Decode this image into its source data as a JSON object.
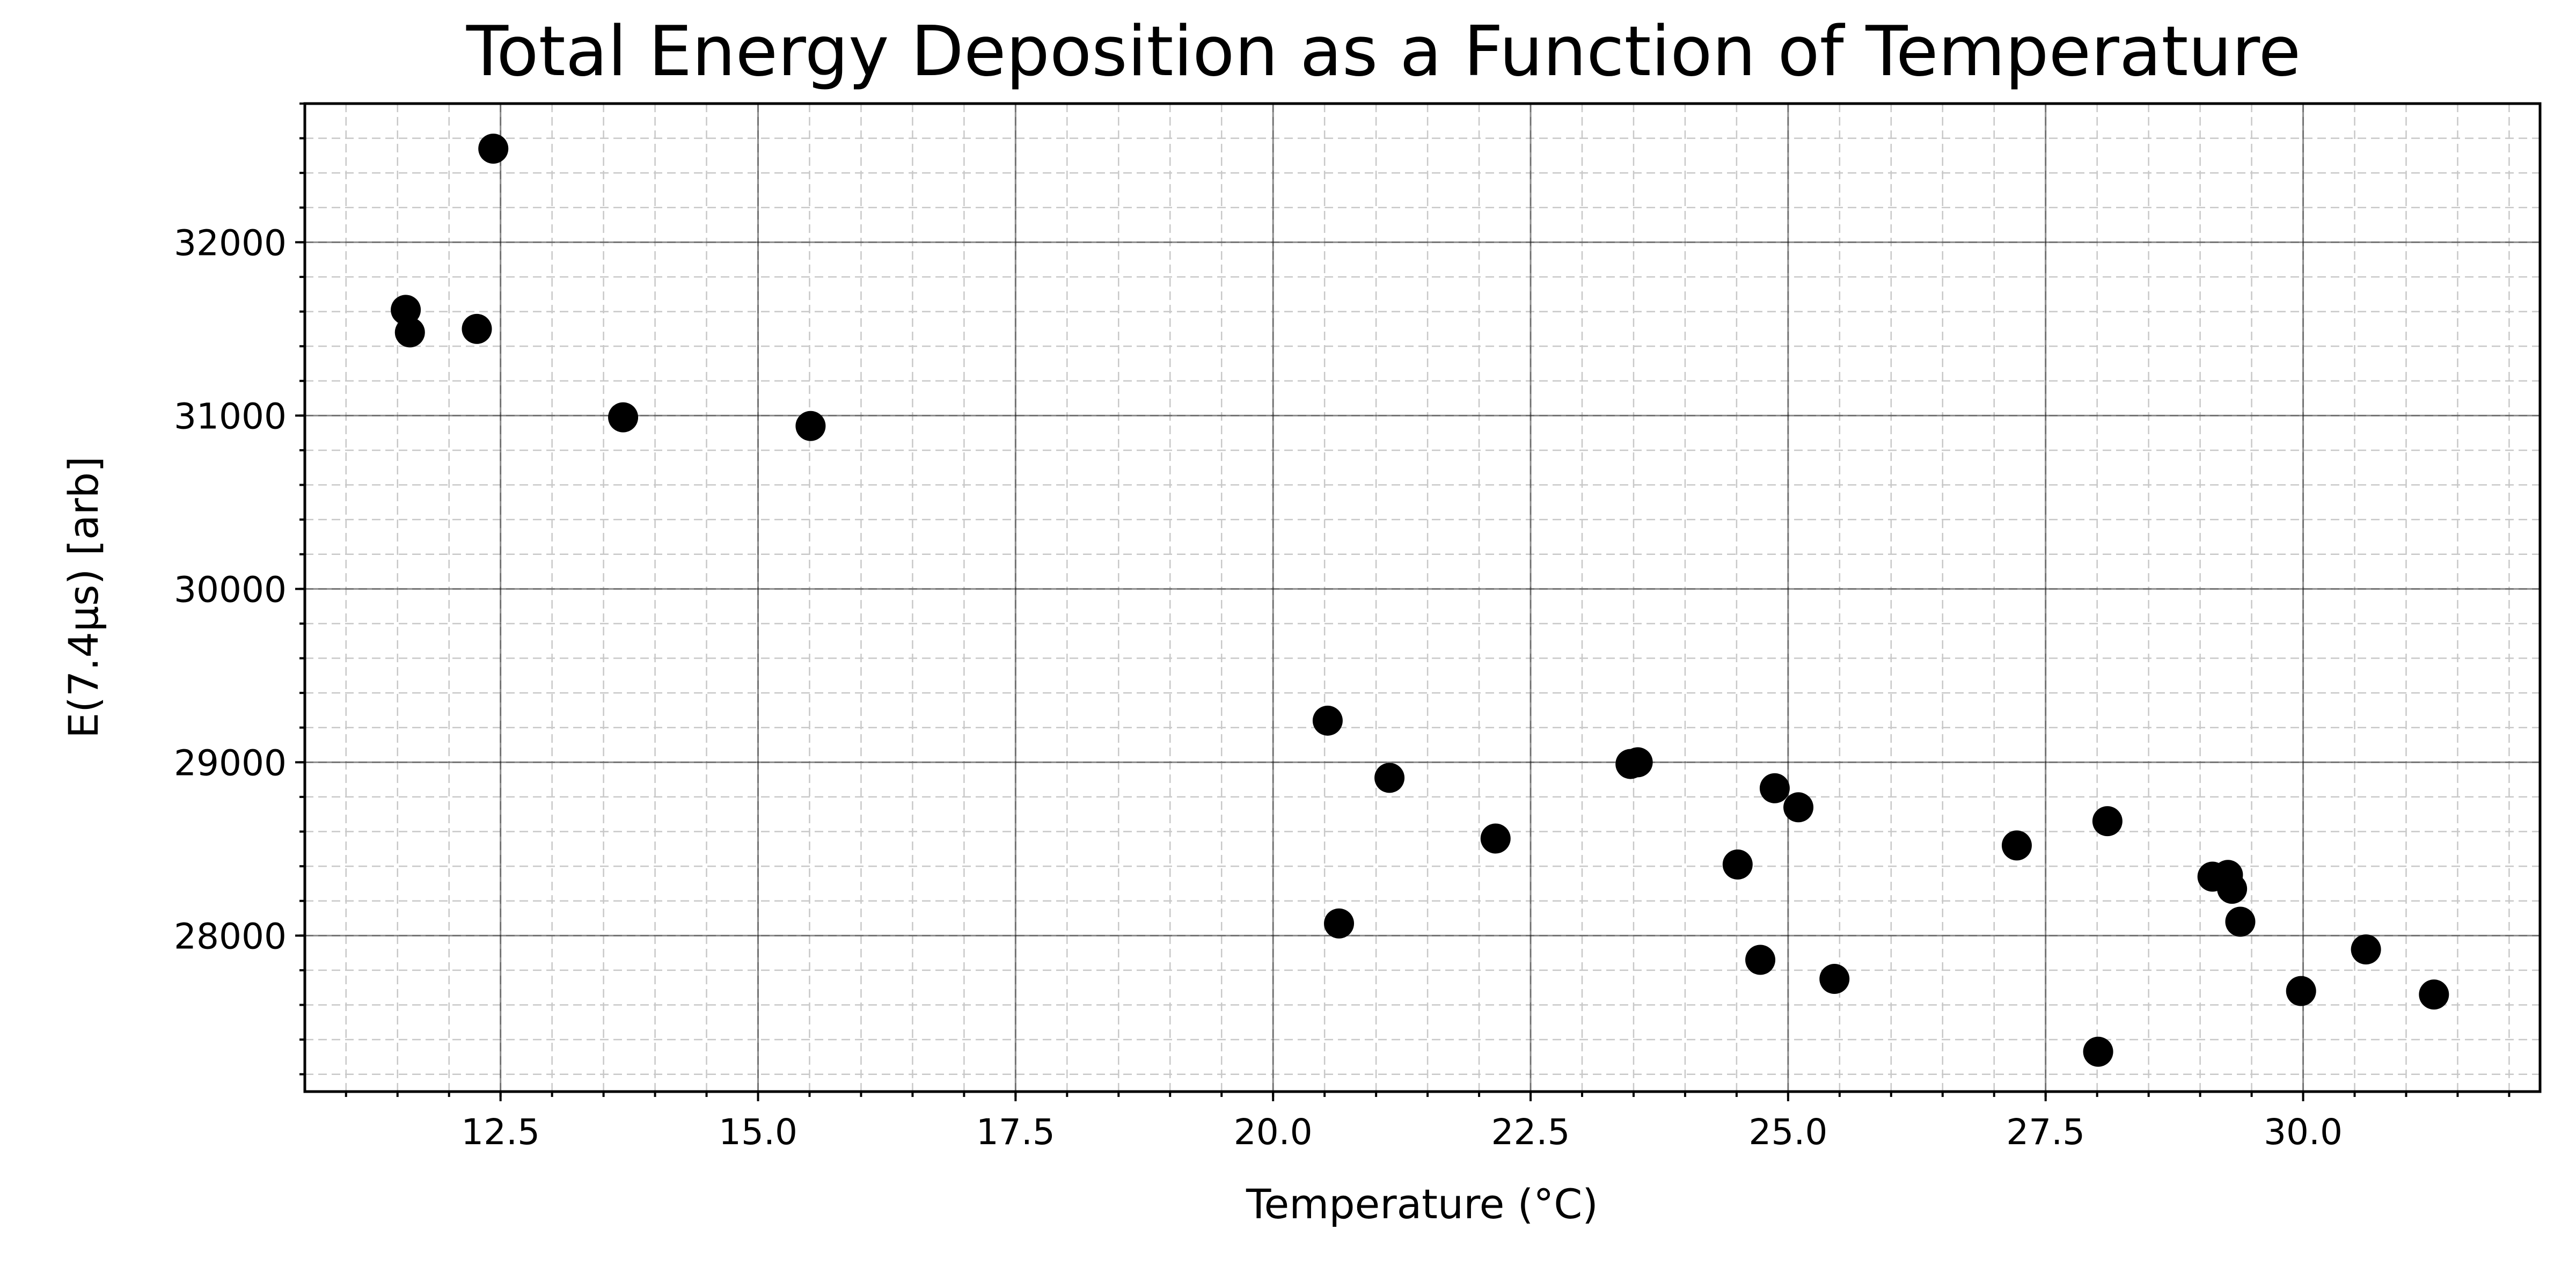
{
  "chart_data": {
    "type": "scatter",
    "title": "Total Energy Deposition as a Function of Temperature",
    "xlabel": "Temperature (°C)",
    "ylabel": "E(7.4μs) [arb]",
    "xlim": [
      10.6,
      32.3
    ],
    "ylim": [
      27100,
      32800
    ],
    "grid": {
      "major": true,
      "minor": true
    },
    "xticks": [
      12.5,
      15.0,
      17.5,
      20.0,
      22.5,
      25.0,
      27.5,
      30.0
    ],
    "xtick_labels": [
      "12.5",
      "15.0",
      "17.5",
      "20.0",
      "22.5",
      "25.0",
      "27.5",
      "30.0"
    ],
    "yticks": [
      28000,
      29000,
      30000,
      31000,
      32000
    ],
    "ytick_labels": [
      "28000",
      "29000",
      "30000",
      "31000",
      "32000"
    ],
    "color": "#000000",
    "series": [
      {
        "points": [
          {
            "x": 11.58,
            "y": 31610
          },
          {
            "x": 11.62,
            "y": 31480
          },
          {
            "x": 12.27,
            "y": 31500
          },
          {
            "x": 12.43,
            "y": 32540
          },
          {
            "x": 13.69,
            "y": 30990
          },
          {
            "x": 15.51,
            "y": 30940
          },
          {
            "x": 20.53,
            "y": 29240
          },
          {
            "x": 20.64,
            "y": 28070
          },
          {
            "x": 21.13,
            "y": 28910
          },
          {
            "x": 22.16,
            "y": 28560
          },
          {
            "x": 23.47,
            "y": 28990
          },
          {
            "x": 23.54,
            "y": 29000
          },
          {
            "x": 24.51,
            "y": 28410
          },
          {
            "x": 24.73,
            "y": 27860
          },
          {
            "x": 24.87,
            "y": 28850
          },
          {
            "x": 25.1,
            "y": 28740
          },
          {
            "x": 25.45,
            "y": 27750
          },
          {
            "x": 27.22,
            "y": 28520
          },
          {
            "x": 28.01,
            "y": 27330
          },
          {
            "x": 28.1,
            "y": 28660
          },
          {
            "x": 29.12,
            "y": 28340
          },
          {
            "x": 29.27,
            "y": 28350
          },
          {
            "x": 29.31,
            "y": 28270
          },
          {
            "x": 29.39,
            "y": 28080
          },
          {
            "x": 29.98,
            "y": 27680
          },
          {
            "x": 30.61,
            "y": 27920
          },
          {
            "x": 31.27,
            "y": 27660
          }
        ]
      }
    ]
  }
}
